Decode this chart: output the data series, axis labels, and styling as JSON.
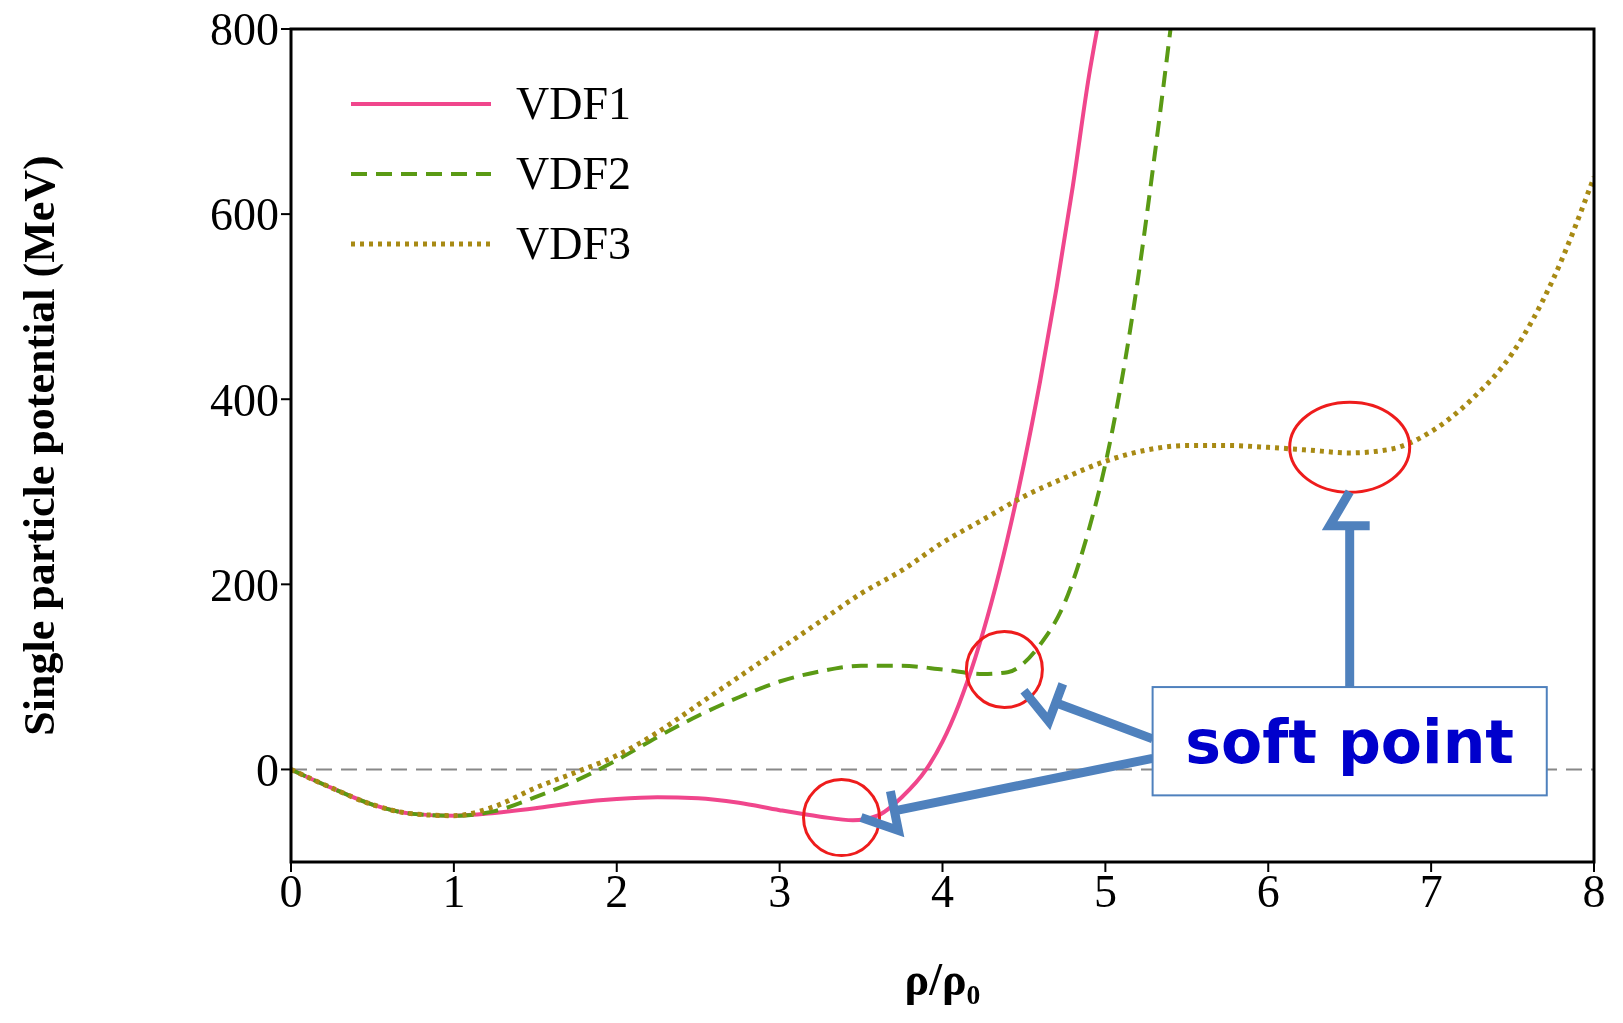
{
  "chart_data": {
    "type": "line",
    "xlabel": "ρ/ρ₀",
    "ylabel": "Single particle potential (MeV)",
    "xlim": [
      0,
      8
    ],
    "xticks": [
      0,
      1,
      2,
      3,
      4,
      5,
      6,
      7,
      8
    ],
    "ylim": [
      -100,
      800
    ],
    "yticks": [
      0,
      200,
      400,
      600,
      800
    ],
    "legend": "top left",
    "marker": "none",
    "series": [
      {
        "name": "VDF1",
        "color": "#f0468c",
        "line_style": "solid",
        "x": [
          0,
          0.25,
          0.5,
          0.75,
          1,
          1.25,
          1.5,
          1.75,
          2,
          2.25,
          2.5,
          2.75,
          3,
          3.25,
          3.45,
          3.6,
          3.75,
          3.9,
          4,
          4.1,
          4.2,
          4.3,
          4.4,
          4.5,
          4.6,
          4.7,
          4.8,
          4.9,
          4.95
        ],
        "values": [
          0,
          -20,
          -38,
          -48,
          -50,
          -47,
          -42,
          -36,
          -32,
          -30,
          -31,
          -36,
          -44,
          -51,
          -55,
          -50,
          -30,
          0,
          30,
          70,
          120,
          180,
          250,
          330,
          420,
          520,
          630,
          750,
          800
        ]
      },
      {
        "name": "VDF2",
        "color": "#5a9a14",
        "line_style": "dashed",
        "x": [
          0,
          0.25,
          0.5,
          0.75,
          1,
          1.25,
          1.5,
          1.75,
          2,
          2.25,
          2.5,
          2.75,
          3,
          3.25,
          3.5,
          3.75,
          4,
          4.25,
          4.4,
          4.5,
          4.6,
          4.75,
          4.9,
          5,
          5.1,
          5.2,
          5.3,
          5.4
        ],
        "values": [
          0,
          -20,
          -38,
          -48,
          -50,
          -45,
          -30,
          -12,
          10,
          35,
          58,
          78,
          95,
          106,
          112,
          112,
          108,
          103,
          105,
          115,
          135,
          180,
          260,
          330,
          420,
          530,
          660,
          800
        ]
      },
      {
        "name": "VDF3",
        "color": "#a88a14",
        "line_style": "dotted",
        "x": [
          0,
          0.25,
          0.5,
          0.75,
          1,
          1.25,
          1.5,
          1.75,
          2,
          2.25,
          2.5,
          2.75,
          3,
          3.25,
          3.5,
          3.75,
          4,
          4.25,
          4.5,
          4.75,
          5,
          5.25,
          5.5,
          5.75,
          6,
          6.25,
          6.5,
          6.75,
          7,
          7.25,
          7.5,
          7.75,
          8
        ],
        "values": [
          0,
          -20,
          -38,
          -48,
          -50,
          -40,
          -20,
          -3,
          15,
          40,
          70,
          100,
          130,
          160,
          190,
          215,
          245,
          270,
          295,
          315,
          333,
          345,
          350,
          350,
          348,
          345,
          342,
          346,
          365,
          400,
          450,
          530,
          640
        ]
      }
    ],
    "ref_lines": [
      {
        "axis": "y",
        "value": 0,
        "color": "#888888",
        "line_style": "dashed"
      }
    ],
    "annotations": [
      "soft point"
    ]
  }
}
